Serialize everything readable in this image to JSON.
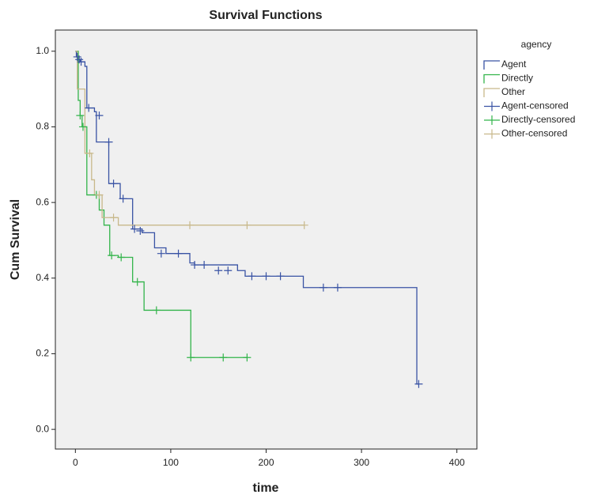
{
  "chart_data": {
    "type": "step",
    "title": "Survival Functions",
    "x_label": "time",
    "y_label": "Cum Survival",
    "legend_title": "agency",
    "legend_position": "right",
    "xlim": [
      -21,
      421
    ],
    "ylim": [
      -0.052,
      1.056
    ],
    "xticks": [
      0,
      100,
      200,
      300,
      400
    ],
    "yticks": [
      {
        "value": 0,
        "label": "0.0"
      },
      0.2,
      0.4,
      0.6,
      0.8,
      {
        "value": 1,
        "label": "1.0"
      }
    ],
    "series": [
      {
        "name": "Agent",
        "color": "#3953a4",
        "kind": "line",
        "x": [
          0,
          1,
          3,
          5,
          10,
          12,
          20,
          22,
          35,
          47,
          60,
          70,
          83,
          95,
          120,
          125,
          170,
          178,
          239,
          358,
          360
        ],
        "values": [
          1.0,
          0.985,
          0.978,
          0.972,
          0.96,
          0.85,
          0.84,
          0.76,
          0.65,
          0.61,
          0.53,
          0.52,
          0.48,
          0.465,
          0.44,
          0.435,
          0.42,
          0.405,
          0.375,
          0.12,
          0.12
        ]
      },
      {
        "name": "Directly",
        "color": "#32b44a",
        "kind": "line",
        "x": [
          0,
          3,
          5,
          7,
          12,
          25,
          30,
          36,
          45,
          60,
          72,
          121,
          180
        ],
        "values": [
          1.0,
          0.87,
          0.83,
          0.8,
          0.62,
          0.58,
          0.54,
          0.46,
          0.455,
          0.39,
          0.315,
          0.19,
          0.19
        ]
      },
      {
        "name": "Other",
        "color": "#c8b88a",
        "kind": "line",
        "x": [
          0,
          2,
          10,
          17,
          20,
          28,
          45,
          240
        ],
        "values": [
          1.0,
          0.9,
          0.73,
          0.66,
          0.62,
          0.56,
          0.54,
          0.54
        ]
      },
      {
        "name": "Agent-censored",
        "color": "#3953a4",
        "kind": "censor",
        "x": [
          2,
          4,
          6,
          14,
          25,
          35,
          40,
          50,
          62,
          68,
          90,
          108,
          125,
          135,
          150,
          160,
          185,
          200,
          215,
          260,
          275,
          360
        ],
        "values": [
          0.985,
          0.978,
          0.972,
          0.85,
          0.83,
          0.76,
          0.65,
          0.61,
          0.53,
          0.525,
          0.465,
          0.465,
          0.435,
          0.435,
          0.42,
          0.42,
          0.405,
          0.405,
          0.405,
          0.375,
          0.375,
          0.12
        ]
      },
      {
        "name": "Directly-censored",
        "color": "#32b44a",
        "kind": "censor",
        "x": [
          5,
          8,
          22,
          38,
          48,
          65,
          85,
          121,
          155,
          180
        ],
        "values": [
          0.83,
          0.8,
          0.62,
          0.46,
          0.455,
          0.39,
          0.315,
          0.19,
          0.19,
          0.19
        ]
      },
      {
        "name": "Other-censored",
        "color": "#c8b88a",
        "kind": "censor",
        "x": [
          15,
          25,
          40,
          120,
          180,
          240
        ],
        "values": [
          0.73,
          0.62,
          0.56,
          0.54,
          0.54,
          0.54
        ]
      }
    ]
  }
}
